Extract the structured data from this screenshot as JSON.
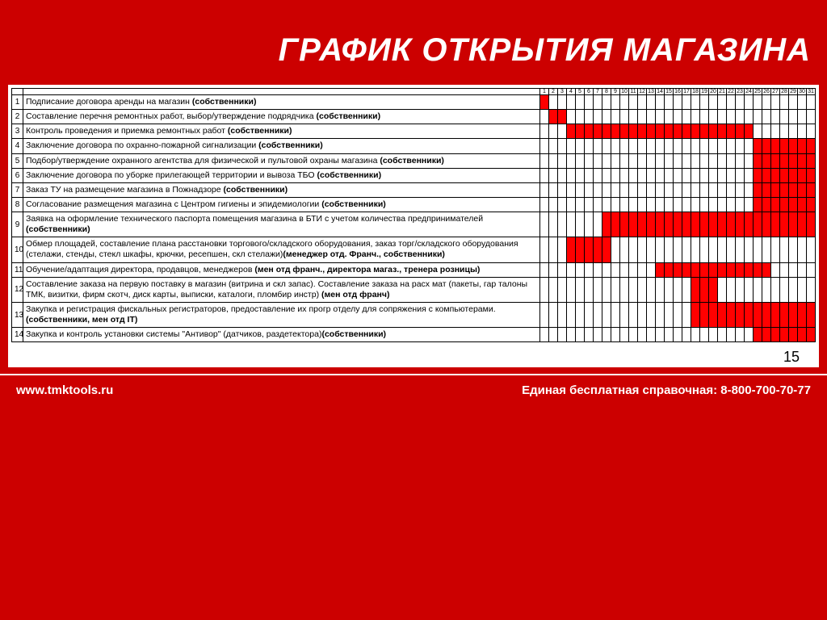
{
  "title": "ГРАФИК ОТКРЫТИЯ МАГАЗИНА",
  "page_number": "15",
  "footer_left": "www.tmktools.ru",
  "footer_right": "Единая бесплатная справочная: 8-800-700-70-77",
  "chart": {
    "type": "gantt",
    "days": 31,
    "bar_color": "#ff0000",
    "background_color": "#ffffff",
    "border_color": "#000000",
    "title_fontsize": 40,
    "task_fontsize": 10.5,
    "rows": [
      {
        "n": 1,
        "text": "Подписание договора аренды на магазин ",
        "bold": "(собственники)",
        "start": 1,
        "end": 1
      },
      {
        "n": 2,
        "text": "Составление перечня ремонтных работ, выбор/утверждение подрядчика ",
        "bold": "(собственники)",
        "start": 2,
        "end": 3
      },
      {
        "n": 3,
        "text": "Контроль проведения и приемка ремонтных работ ",
        "bold": "(собственники)",
        "start": 4,
        "end": 24
      },
      {
        "n": 4,
        "text": "Заключение договора по охранно-пожарной сигнализации ",
        "bold": "(собственники)",
        "start": 25,
        "end": 31
      },
      {
        "n": 5,
        "text": "Подбор/утверждение охранного агентства для физической и пультовой охраны магазина ",
        "bold": "(собственники)",
        "start": 25,
        "end": 31
      },
      {
        "n": 6,
        "text": "Заключение договора по уборке прилегающей территории и вывоза ТБО ",
        "bold": "(собственники)",
        "start": 25,
        "end": 31
      },
      {
        "n": 7,
        "text": "Заказ ТУ на размещение магазина в Пожнадзоре ",
        "bold": "(собственники)",
        "start": 25,
        "end": 31
      },
      {
        "n": 8,
        "text": "Согласование размещения магазина с Центром гигиены и эпидемиологии ",
        "bold": "(собственники)",
        "start": 25,
        "end": 31
      },
      {
        "n": 9,
        "text": "Заявка на оформление технического паспорта помещения магазина в БТИ с учетом количества предпринимателей ",
        "bold": "(собственники)",
        "start": 8,
        "end": 31
      },
      {
        "n": 10,
        "text": "Обмер площадей, составление плана расстановки торгового/складского оборудования, заказ торг/складского оборудования (стелажи, стенды, стекл шкафы, крючки, ресепшен, скл стелажи)",
        "bold": "(менеджер отд. Франч., собственники)",
        "start": 4,
        "end": 8
      },
      {
        "n": 11,
        "text": "Обучение/адаптация директора, продавцов, менеджеров ",
        "bold": "(мен отд франч., директора магаз., тренера розницы)",
        "start": 14,
        "end": 26
      },
      {
        "n": 12,
        "text": "Составление заказа на первую поставку в магазин (витрина и скл запас). Составление заказа на расх мат (пакеты, гар талоны ТМК, визитки, фирм скотч, диск карты, выписки, каталоги, пломбир инстр) ",
        "bold": "(мен отд франч)",
        "start": 18,
        "end": 20
      },
      {
        "n": 13,
        "text": "Закупка и регистрация фискальных регистраторов, предоставление их прогр отделу для сопряжения с компьютерами. ",
        "bold": "(собственники, мен отд IT)",
        "start": 18,
        "end": 31
      },
      {
        "n": 14,
        "text": "Закупка и контроль установки системы \"Антивор\" (датчиков, раздетектора)",
        "bold": "(собственники)",
        "start": 25,
        "end": 31
      }
    ]
  }
}
